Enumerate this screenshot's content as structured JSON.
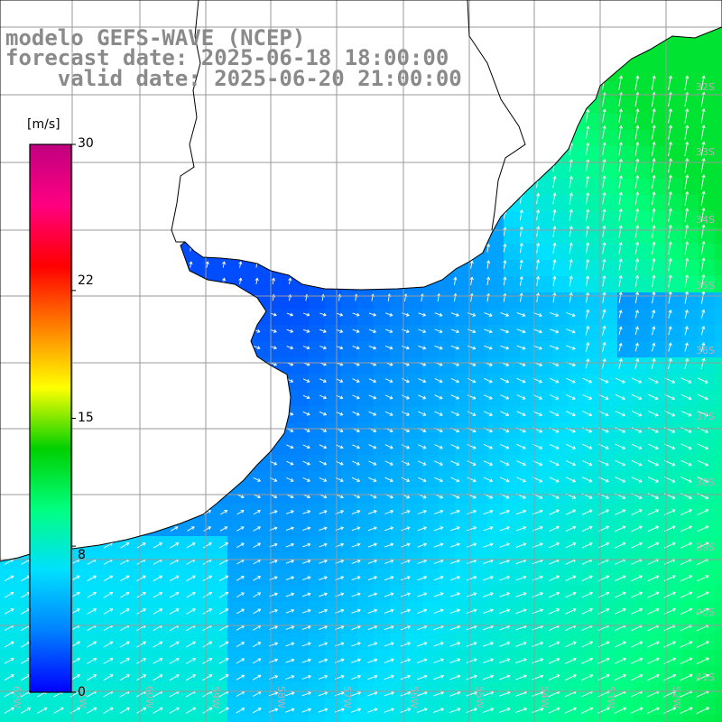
{
  "title": {
    "line1": "modelo GEFS-WAVE (NCEP)",
    "line2": "forecast date: 2025-06-18 18:00:00",
    "line3": "    valid date: 2025-06-20 21:00:00"
  },
  "colorbar": {
    "unit": "[m/s]",
    "min": 0,
    "max": 30,
    "ticks": [
      "30",
      "22",
      "15",
      "8",
      "0"
    ],
    "tick_values": [
      30,
      22,
      15,
      8,
      0
    ],
    "colors": [
      "#0000ff",
      "#0080ff",
      "#00e0ff",
      "#00ff80",
      "#00d000",
      "#ffff00",
      "#ff8000",
      "#ff0000",
      "#ff0080",
      "#c00080"
    ]
  },
  "map": {
    "lat_labels": [
      "32S",
      "33S",
      "34S",
      "35S",
      "36S",
      "37S",
      "38S",
      "39S",
      "40S",
      "41S"
    ],
    "lon_labels": [
      "62W",
      "61W",
      "60W",
      "59W",
      "58W",
      "57W",
      "56W",
      "55W",
      "54W",
      "53W",
      "52W"
    ],
    "land_color": "#ffffff",
    "coast_color": "#000000",
    "grid_color": "#9a9a9a",
    "arrow_color": "#ffffff"
  }
}
